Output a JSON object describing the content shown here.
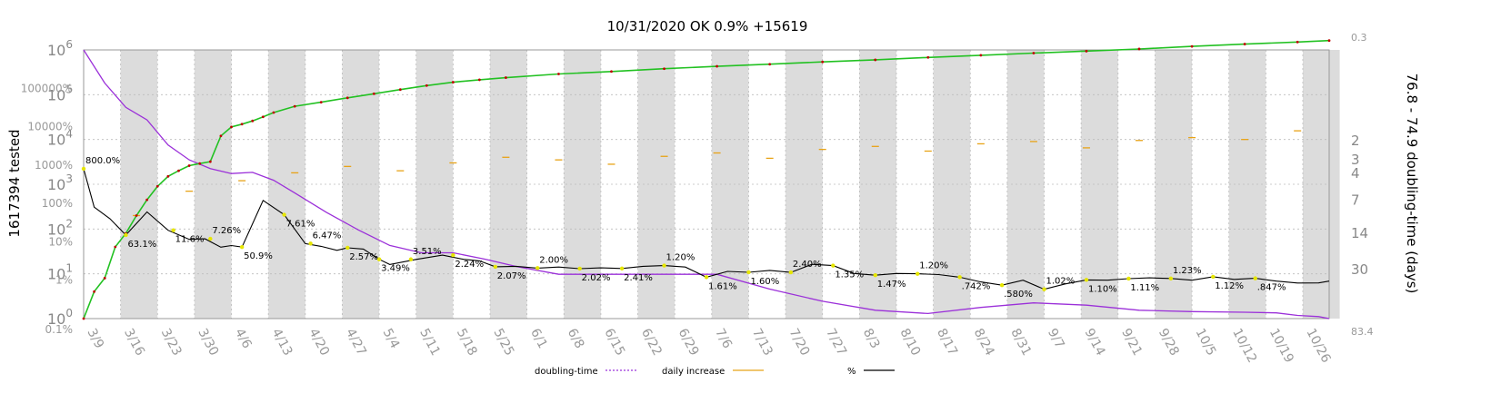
{
  "chart_data": {
    "type": "line",
    "title": "10/31/2020 OK 0.9% +15619",
    "ylabel_left": "1617394 tested",
    "ylabel_right": "76.8 - 74.9 doubling-time (days)",
    "x_tick_labels": [
      "3/9",
      "3/16",
      "3/23",
      "3/30",
      "4/6",
      "4/13",
      "4/20",
      "4/27",
      "5/4",
      "5/11",
      "5/18",
      "5/25",
      "6/1",
      "6/8",
      "6/15",
      "6/22",
      "6/29",
      "7/6",
      "7/13",
      "7/20",
      "7/27",
      "8/3",
      "8/10",
      "8/17",
      "8/24",
      "8/31",
      "9/7",
      "9/14",
      "9/21",
      "9/28",
      "10/5",
      "10/12",
      "10/19",
      "10/26"
    ],
    "y_left_ticks": [
      {
        "base": "10",
        "exp": "0"
      },
      {
        "base": "10",
        "exp": "1"
      },
      {
        "base": "10",
        "exp": "2"
      },
      {
        "base": "10",
        "exp": "3"
      },
      {
        "base": "10",
        "exp": "4"
      },
      {
        "base": "10",
        "exp": "5"
      },
      {
        "base": "10",
        "exp": "6"
      }
    ],
    "y_pct_ticks": [
      "0.1%",
      "1%",
      "10%",
      "100%",
      "1000%",
      "10000%",
      "100000%"
    ],
    "y_right_ticks": [
      "0.3",
      "2",
      "3",
      "4",
      "7",
      "14",
      "30",
      "83.4"
    ],
    "annotations": [
      "800.0%",
      "63.1%",
      "11.6%",
      "7.26%",
      "50.9%",
      "7.61%",
      "6.47%",
      "2.57%",
      "3.49%",
      "3.51%",
      "2.24%",
      "2.07%",
      "2.00%",
      "2.02%",
      "2.41%",
      "1.20%",
      "1.61%",
      "1.60%",
      "2.40%",
      "1.35%",
      "1.47%",
      "1.20%",
      ".742%",
      ".580%",
      "1.02%",
      "1.10%",
      "1.11%",
      "1.23%",
      "1.12%",
      ".847%"
    ],
    "legend": [
      {
        "label": "doubling-time",
        "color": "#9b30d9",
        "style": "dotted"
      },
      {
        "label": "daily increase",
        "color": "#e8a317",
        "style": "solid"
      },
      {
        "label": "%",
        "color": "#000000",
        "style": "solid"
      }
    ],
    "series": [
      {
        "name": "tested",
        "color": "#22c122",
        "x": [
          0,
          2,
          4,
          6,
          8,
          10,
          12,
          14,
          16,
          18,
          20,
          22,
          24,
          26,
          28,
          30,
          32,
          34,
          36,
          40,
          45,
          50,
          55,
          60,
          65,
          70,
          75,
          80,
          90,
          100,
          110,
          120,
          130,
          140,
          150,
          160,
          170,
          180,
          190,
          200,
          210,
          220,
          230,
          236
        ],
        "y": [
          1,
          4,
          8,
          40,
          80,
          200,
          450,
          900,
          1500,
          2000,
          2600,
          2900,
          3200,
          12000,
          19000,
          22000,
          26000,
          32000,
          40000,
          55000,
          68000,
          85000,
          105000,
          130000,
          160000,
          190000,
          215000,
          240000,
          290000,
          330000,
          380000,
          430000,
          480000,
          540000,
          600000,
          680000,
          760000,
          850000,
          940000,
          1050000,
          1200000,
          1350000,
          1500000,
          1617394
        ]
      },
      {
        "name": "%",
        "color": "#000000",
        "x": [
          0,
          2,
          5,
          8,
          12,
          16,
          20,
          23,
          26,
          28,
          30,
          34,
          38,
          42,
          45,
          48,
          50,
          53,
          56,
          58,
          63,
          68,
          72,
          75,
          78,
          82,
          86,
          90,
          94,
          98,
          102,
          106,
          110,
          114,
          118,
          122,
          126,
          130,
          134,
          138,
          142,
          146,
          150,
          154,
          158,
          162,
          166,
          170,
          174,
          178,
          182,
          186,
          190,
          194,
          198,
          202,
          206,
          210,
          214,
          218,
          222,
          226,
          230,
          234,
          236
        ],
        "y": [
          800,
          80,
          40,
          15,
          60,
          20,
          11.6,
          12,
          7.26,
          8,
          7.3,
          120,
          50.9,
          9,
          7.61,
          6,
          7,
          6.47,
          3.5,
          2.57,
          3.49,
          4.5,
          3.51,
          3.2,
          2.24,
          2.3,
          2.07,
          2.2,
          2.0,
          2.1,
          2.02,
          2.3,
          2.41,
          2.2,
          1.2,
          1.7,
          1.61,
          1.8,
          1.6,
          2.6,
          2.4,
          1.5,
          1.35,
          1.5,
          1.47,
          1.4,
          1.2,
          0.9,
          0.742,
          1.0,
          0.58,
          0.8,
          1.02,
          1.0,
          1.1,
          1.15,
          1.11,
          1.0,
          1.23,
          1.05,
          1.12,
          0.95,
          0.847,
          0.85,
          0.95
        ]
      },
      {
        "name": "doubling-time",
        "color": "#9b30d9",
        "x": [
          0,
          4,
          8,
          12,
          16,
          20,
          24,
          28,
          32,
          36,
          40,
          46,
          52,
          58,
          64,
          70,
          76,
          82,
          90,
          100,
          110,
          120,
          130,
          140,
          150,
          160,
          170,
          180,
          190,
          200,
          210,
          220,
          226,
          230,
          234,
          236
        ],
        "y": [
          0.3,
          0.6,
          1.0,
          1.3,
          2.2,
          3.0,
          3.6,
          4.0,
          3.9,
          4.6,
          6,
          9,
          13,
          18,
          21,
          21,
          24,
          28,
          33,
          33,
          33,
          33,
          45,
          58,
          70,
          75,
          66,
          60,
          63,
          70,
          72,
          73,
          74,
          78,
          80,
          83.4
        ]
      },
      {
        "name": "daily increase",
        "color": "#e8a317",
        "x": [
          10,
          20,
          30,
          40,
          50,
          60,
          70,
          80,
          90,
          100,
          110,
          120,
          130,
          140,
          150,
          160,
          170,
          180,
          190,
          200,
          210,
          220,
          230
        ],
        "y": [
          200,
          700,
          1200,
          1800,
          2500,
          2000,
          3000,
          4000,
          3500,
          2800,
          4200,
          5000,
          3800,
          6000,
          7000,
          5500,
          8000,
          9000,
          6500,
          9500,
          11000,
          10000,
          15619
        ]
      }
    ]
  }
}
